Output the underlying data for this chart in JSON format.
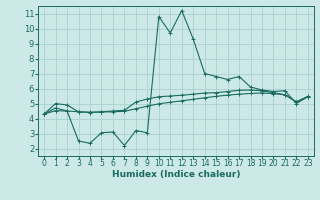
{
  "xlabel": "Humidex (Indice chaleur)",
  "xlim": [
    -0.5,
    23.5
  ],
  "ylim": [
    1.5,
    11.5
  ],
  "xticks": [
    0,
    1,
    2,
    3,
    4,
    5,
    6,
    7,
    8,
    9,
    10,
    11,
    12,
    13,
    14,
    15,
    16,
    17,
    18,
    19,
    20,
    21,
    22,
    23
  ],
  "yticks": [
    2,
    3,
    4,
    5,
    6,
    7,
    8,
    9,
    10,
    11
  ],
  "bg_color": "#cce9e7",
  "grid_color": "#aad0ce",
  "line_color": "#1a6b60",
  "line2_x": [
    0,
    1,
    2,
    3,
    4,
    5,
    6,
    7,
    8,
    9,
    10,
    11,
    12,
    13,
    14,
    15,
    16,
    17,
    18,
    19,
    20,
    21,
    22,
    23
  ],
  "line2_y": [
    4.3,
    4.7,
    4.5,
    2.5,
    2.35,
    3.05,
    3.1,
    2.2,
    3.2,
    3.05,
    10.8,
    9.7,
    11.2,
    9.3,
    7.0,
    6.8,
    6.6,
    6.8,
    6.1,
    5.9,
    5.8,
    5.85,
    5.0,
    5.45
  ],
  "line1_x": [
    0,
    1,
    2,
    3,
    4,
    5,
    6,
    7,
    8,
    9,
    10,
    11,
    12,
    13,
    14,
    15,
    16,
    17,
    18,
    19,
    20,
    21,
    22,
    23
  ],
  "line1_y": [
    4.3,
    5.0,
    4.9,
    4.45,
    4.4,
    4.45,
    4.5,
    4.55,
    5.1,
    5.3,
    5.45,
    5.5,
    5.55,
    5.62,
    5.7,
    5.72,
    5.8,
    5.88,
    5.9,
    5.85,
    5.72,
    5.58,
    5.12,
    5.48
  ],
  "line3_x": [
    0,
    1,
    2,
    3,
    4,
    5,
    6,
    7,
    8,
    9,
    10,
    11,
    12,
    13,
    14,
    15,
    16,
    17,
    18,
    19,
    20,
    21,
    22,
    23
  ],
  "line3_y": [
    4.3,
    4.52,
    4.5,
    4.45,
    4.42,
    4.43,
    4.45,
    4.48,
    4.65,
    4.82,
    4.98,
    5.08,
    5.18,
    5.28,
    5.38,
    5.48,
    5.56,
    5.62,
    5.67,
    5.7,
    5.66,
    5.58,
    5.1,
    5.45
  ]
}
